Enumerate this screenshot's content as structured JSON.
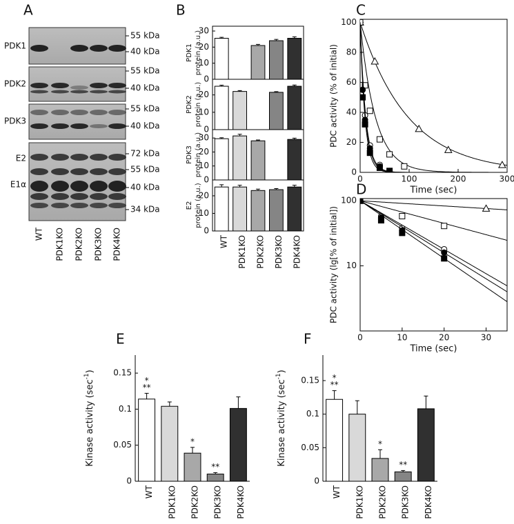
{
  "blot": {
    "label": "A",
    "rows": [
      "PDK1",
      "PDK2",
      "PDK3",
      "E2",
      "E1α"
    ],
    "markers": [
      "55 kDa",
      "40 kDa",
      "55 kDa",
      "40 kDa",
      "55 kDa",
      "40 kDa",
      "72 kDa",
      "55 kDa",
      "40 kDa",
      "34 kDa"
    ],
    "lanes": [
      "WT",
      "PDK1KO",
      "PDK2KO",
      "PDK3KO",
      "PDK4KO"
    ]
  },
  "chart_data": [
    {
      "type": "panels",
      "label": "B",
      "categories": [
        "WT",
        "PDK1KO",
        "PDK2KO",
        "PDK3KO",
        "PDK4KO"
      ],
      "colors": [
        "#ffffff",
        "#d9d9d9",
        "#a8a8a8",
        "#858585",
        "#303030"
      ],
      "panels": [
        {
          "ylabel": [
            "PDK1",
            "protein (a.u.)"
          ],
          "values": [
            25.5,
            null,
            21,
            24,
            25.5
          ],
          "errors": [
            0.6,
            null,
            0.7,
            0.8,
            0.9
          ],
          "ylim": [
            0,
            33
          ],
          "yticks": [
            0,
            10,
            20,
            30
          ]
        },
        {
          "ylabel": [
            "PDK2",
            "protein (a.u.)"
          ],
          "values": [
            25,
            22,
            null,
            21.5,
            25
          ],
          "errors": [
            0.6,
            0.5,
            null,
            0.4,
            0.7
          ],
          "ylim": [
            0,
            29
          ],
          "yticks": [
            0,
            10,
            20
          ]
        },
        {
          "ylabel": [
            "PDK3",
            "protein (a.u.)"
          ],
          "values": [
            29.5,
            31.5,
            28,
            null,
            29
          ],
          "errors": [
            0.7,
            1.2,
            0.6,
            null,
            0.9
          ],
          "ylim": [
            0,
            36
          ],
          "yticks": [
            0,
            10,
            20,
            30
          ]
        },
        {
          "ylabel": [
            "E2",
            "protein (a.u.)"
          ],
          "values": [
            25,
            25,
            23,
            23.5,
            25
          ],
          "errors": [
            1.3,
            1.0,
            0.8,
            0.6,
            1.0
          ],
          "ylim": [
            0,
            29
          ],
          "yticks": [
            0,
            10,
            20
          ]
        }
      ]
    },
    {
      "type": "scatter",
      "label": "C",
      "xlabel": "Time (sec)",
      "ylabel": "PDC activity (% of initial)",
      "log": false,
      "xlim": [
        0,
        300
      ],
      "xticks": [
        0,
        100,
        200,
        300
      ],
      "ylim": [
        0,
        102
      ],
      "yticks": [
        0,
        20,
        40,
        60,
        80,
        100
      ],
      "series": [
        {
          "marker": "triangle",
          "filled": false,
          "x": [
            0,
            30,
            120,
            180,
            290
          ],
          "values": [
            100,
            74,
            29,
            15,
            5
          ],
          "fit": {
            "y0": 100,
            "rate": 0.0102
          }
        },
        {
          "marker": "square",
          "filled": false,
          "x": [
            0,
            10,
            20,
            40,
            60,
            90
          ],
          "values": [
            100,
            58,
            41,
            22,
            12,
            4
          ],
          "fit": {
            "y0": 100,
            "rate": 0.032
          }
        },
        {
          "marker": "circle",
          "filled": false,
          "x": [
            5,
            10,
            20,
            40,
            60
          ],
          "values": [
            55,
            38,
            18,
            5,
            1
          ],
          "fit": {
            "y0": 100,
            "rate": 0.086
          }
        },
        {
          "marker": "circle",
          "filled": true,
          "x": [
            5,
            10,
            20,
            40
          ],
          "values": [
            55,
            35,
            16,
            4
          ],
          "fit": {
            "y0": 100,
            "rate": 0.092
          }
        },
        {
          "marker": "square",
          "filled": true,
          "x": [
            5,
            10,
            20,
            40,
            60
          ],
          "values": [
            50,
            32,
            13,
            3,
            1
          ],
          "fit": {
            "y0": 100,
            "rate": 0.102
          }
        }
      ]
    },
    {
      "type": "scatter",
      "label": "D",
      "xlabel": "Time (sec)",
      "ylabel": "PDC activity (lg[% of initial])",
      "log": true,
      "xlim": [
        0,
        35
      ],
      "xticks": [
        0,
        10,
        20,
        30
      ],
      "ylim": [
        1,
        108
      ],
      "yticks": [
        10,
        100
      ],
      "series": [
        {
          "marker": "triangle",
          "filled": false,
          "x": [
            0,
            30
          ],
          "values": [
            100,
            76
          ],
          "fit": {
            "y0": 100,
            "rate": 0.0092
          }
        },
        {
          "marker": "square",
          "filled": false,
          "x": [
            0,
            10,
            20
          ],
          "values": [
            100,
            58,
            41
          ],
          "fit": {
            "y0": 100,
            "rate": 0.04
          }
        },
        {
          "marker": "circle",
          "filled": false,
          "x": [
            0,
            5,
            10,
            20
          ],
          "values": [
            100,
            58,
            38,
            18
          ],
          "fit": {
            "y0": 100,
            "rate": 0.086
          }
        },
        {
          "marker": "circle",
          "filled": true,
          "x": [
            0,
            5,
            10,
            20
          ],
          "values": [
            100,
            55,
            35,
            16
          ],
          "fit": {
            "y0": 100,
            "rate": 0.092
          }
        },
        {
          "marker": "square",
          "filled": true,
          "x": [
            0,
            5,
            10,
            20
          ],
          "values": [
            100,
            50,
            32,
            13
          ],
          "fit": {
            "y0": 100,
            "rate": 0.102
          }
        }
      ]
    },
    {
      "type": "bar",
      "label": "E",
      "ylabel": [
        "Kinase activity (sec",
        "-1",
        ")"
      ],
      "categories": [
        "WT",
        "PDK1KO",
        "PDK2KO",
        "PDK3KO",
        "PDK4KO"
      ],
      "colors": [
        "#ffffff",
        "#d9d9d9",
        "#a8a8a8",
        "#858585",
        "#303030"
      ],
      "values": [
        0.114,
        0.104,
        0.039,
        0.01,
        0.101
      ],
      "errors": [
        0.008,
        0.006,
        0.008,
        0.002,
        0.016
      ],
      "significance": [
        [
          "*",
          "**"
        ],
        null,
        [
          "*"
        ],
        [
          "**"
        ],
        null
      ],
      "ylim": [
        0,
        0.175
      ],
      "yticks": [
        0,
        0.05,
        0.1,
        0.15
      ]
    },
    {
      "type": "bar",
      "label": "F",
      "ylabel": [
        "Kinase activity (sec",
        "-1",
        ")"
      ],
      "categories": [
        "WT",
        "PDK1KO",
        "PDK2KO",
        "PDK3KO",
        "PDK4KO"
      ],
      "colors": [
        "#ffffff",
        "#d9d9d9",
        "#a8a8a8",
        "#858585",
        "#303030"
      ],
      "values": [
        0.122,
        0.1,
        0.034,
        0.014,
        0.108
      ],
      "errors": [
        0.013,
        0.02,
        0.013,
        0.002,
        0.019
      ],
      "significance": [
        [
          "*",
          "**"
        ],
        null,
        [
          "*"
        ],
        [
          "**"
        ],
        null
      ],
      "ylim": [
        0,
        0.188
      ],
      "yticks": [
        0,
        0.05,
        0.1,
        0.15
      ]
    }
  ]
}
